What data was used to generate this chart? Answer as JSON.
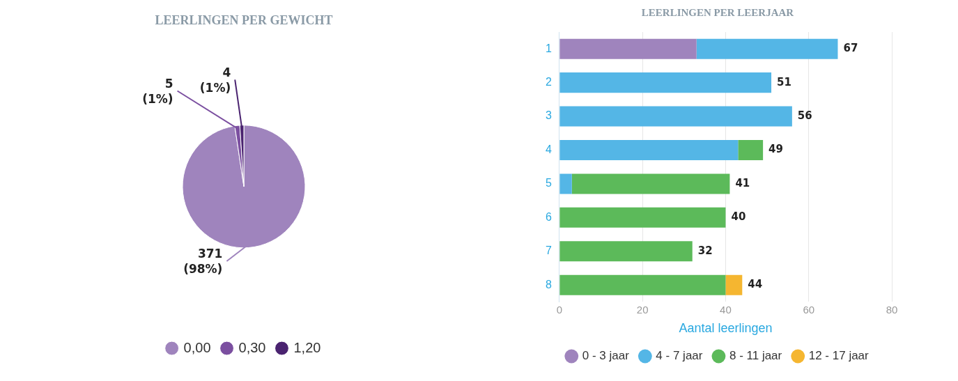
{
  "chart_data": [
    {
      "type": "pie",
      "title": "LEERLINGEN PER GEWICHT",
      "categories": [
        "0,00",
        "0,30",
        "1,20"
      ],
      "values": [
        371,
        5,
        4
      ],
      "colors": [
        "#9f84bd",
        "#7b4fa0",
        "#4a2370"
      ],
      "value_labels": [
        "371 (98%)",
        "5 (1%)",
        "4 (1%)"
      ],
      "legend": "bottom"
    },
    {
      "type": "bar",
      "title": "LEERLINGEN PER LEERJAAR",
      "orientation": "horizontal",
      "stacked": true,
      "categories": [
        "1",
        "2",
        "3",
        "4",
        "5",
        "6",
        "7",
        "8"
      ],
      "series": [
        {
          "name": "0 - 3 jaar",
          "color": "#9f84bd",
          "values": [
            33,
            null,
            null,
            null,
            null,
            null,
            null,
            null
          ]
        },
        {
          "name": "4 - 7 jaar",
          "color": "#54b6e6",
          "values": [
            34,
            51,
            56,
            43,
            3,
            null,
            null,
            null
          ]
        },
        {
          "name": "8 - 11 jaar",
          "color": "#5cba5a",
          "values": [
            null,
            null,
            null,
            6,
            38,
            40,
            32,
            40
          ]
        },
        {
          "name": "12 - 17 jaar",
          "color": "#f5b630",
          "values": [
            null,
            null,
            null,
            null,
            null,
            null,
            null,
            4
          ]
        }
      ],
      "totals": [
        "67",
        "51",
        "56",
        "49",
        "41",
        "40",
        "32",
        "44"
      ],
      "xlim": [
        0,
        80
      ],
      "xticks": [
        0,
        20,
        40,
        60,
        80
      ],
      "xlabel": "Aantal leerlingen",
      "grid": "x",
      "legend": "bottom"
    }
  ]
}
